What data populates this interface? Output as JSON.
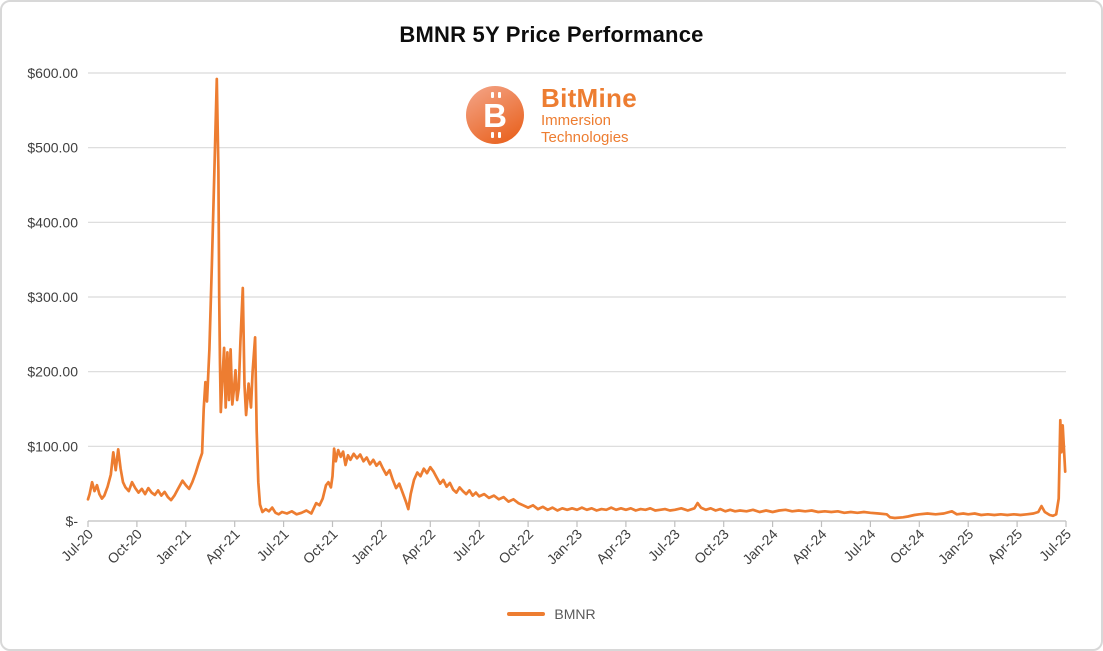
{
  "chart": {
    "title": "BMNR 5Y Price Performance"
  },
  "logo": {
    "brand": "BitMine",
    "sub1": "Immersion",
    "sub2": "Technologies",
    "symbol": "B"
  },
  "colors": {
    "series_orange": "#ED7D31",
    "gridline": "#D9D9D9",
    "axis_line": "#BFBFBF",
    "axis_label": "#404040",
    "legend_label": "#595959",
    "title": "#0d0d0d",
    "logo_text_orange": "#ED7D31",
    "logo_gradient_light": "#F3A284",
    "logo_gradient_dark": "#E96320",
    "frame_border": "#D8D8D8"
  },
  "chart_data": {
    "type": "line",
    "title": "BMNR 5Y Price Performance",
    "xlabel": "",
    "ylabel": "",
    "grid": "horizontal",
    "legend_position": "bottom",
    "legend_entries": [
      "BMNR"
    ],
    "x_axis": {
      "unit": "months-since-Jul-2020",
      "range_months": [
        0,
        60
      ],
      "tick_positions_months": [
        0,
        3,
        6,
        9,
        12,
        15,
        18,
        21,
        24,
        27,
        30,
        33,
        36,
        39,
        42,
        45,
        48,
        51,
        54,
        57,
        60
      ],
      "tick_labels": [
        "Jul-20",
        "Oct-20",
        "Jan-21",
        "Apr-21",
        "Jul-21",
        "Oct-21",
        "Jan-22",
        "Apr-22",
        "Jul-22",
        "Oct-22",
        "Jan-23",
        "Apr-23",
        "Jul-23",
        "Oct-23",
        "Jan-24",
        "Apr-24",
        "Jul-24",
        "Oct-24",
        "Jan-25",
        "Apr-25",
        "Jul-25"
      ],
      "label_rotation_deg": -45
    },
    "y_axis": {
      "range": [
        0,
        600
      ],
      "tick_values": [
        0,
        100,
        200,
        300,
        400,
        500,
        600
      ],
      "tick_labels": [
        "$-",
        "$100.00",
        "$200.00",
        "$300.00",
        "$400.00",
        "$500.00",
        "$600.00"
      ]
    },
    "series": [
      {
        "name": "BMNR",
        "color": "#ED7D31",
        "points_months_price": [
          [
            0,
            29
          ],
          [
            0.1,
            36
          ],
          [
            0.25,
            52
          ],
          [
            0.4,
            40
          ],
          [
            0.55,
            48
          ],
          [
            0.7,
            36
          ],
          [
            0.85,
            30
          ],
          [
            1,
            34
          ],
          [
            1.2,
            46
          ],
          [
            1.4,
            62
          ],
          [
            1.55,
            92
          ],
          [
            1.7,
            68
          ],
          [
            1.85,
            96
          ],
          [
            2,
            70
          ],
          [
            2.15,
            52
          ],
          [
            2.3,
            45
          ],
          [
            2.5,
            40
          ],
          [
            2.7,
            52
          ],
          [
            2.9,
            44
          ],
          [
            3.1,
            38
          ],
          [
            3.3,
            43
          ],
          [
            3.5,
            36
          ],
          [
            3.7,
            44
          ],
          [
            3.9,
            38
          ],
          [
            4.1,
            35
          ],
          [
            4.3,
            41
          ],
          [
            4.5,
            34
          ],
          [
            4.7,
            39
          ],
          [
            4.9,
            32
          ],
          [
            5.1,
            28
          ],
          [
            5.3,
            34
          ],
          [
            5.5,
            42
          ],
          [
            5.8,
            54
          ],
          [
            6,
            48
          ],
          [
            6.2,
            43
          ],
          [
            6.4,
            52
          ],
          [
            6.6,
            64
          ],
          [
            6.8,
            78
          ],
          [
            7,
            91
          ],
          [
            7.1,
            150
          ],
          [
            7.2,
            186
          ],
          [
            7.3,
            160
          ],
          [
            7.45,
            230
          ],
          [
            7.6,
            345
          ],
          [
            7.75,
            465
          ],
          [
            7.9,
            592
          ],
          [
            8,
            470
          ],
          [
            8.05,
            300
          ],
          [
            8.1,
            210
          ],
          [
            8.15,
            146
          ],
          [
            8.25,
            192
          ],
          [
            8.35,
            232
          ],
          [
            8.45,
            152
          ],
          [
            8.55,
            226
          ],
          [
            8.65,
            162
          ],
          [
            8.75,
            230
          ],
          [
            8.85,
            156
          ],
          [
            8.95,
            176
          ],
          [
            9.05,
            202
          ],
          [
            9.15,
            162
          ],
          [
            9.25,
            178
          ],
          [
            9.35,
            240
          ],
          [
            9.5,
            312
          ],
          [
            9.6,
            182
          ],
          [
            9.7,
            142
          ],
          [
            9.85,
            184
          ],
          [
            10,
            152
          ],
          [
            10.1,
            200
          ],
          [
            10.25,
            246
          ],
          [
            10.35,
            120
          ],
          [
            10.45,
            52
          ],
          [
            10.55,
            22
          ],
          [
            10.7,
            12
          ],
          [
            10.9,
            16
          ],
          [
            11.1,
            13
          ],
          [
            11.3,
            18
          ],
          [
            11.5,
            11
          ],
          [
            11.7,
            9
          ],
          [
            11.9,
            12
          ],
          [
            12.2,
            10
          ],
          [
            12.5,
            13
          ],
          [
            12.8,
            9
          ],
          [
            13.1,
            11
          ],
          [
            13.4,
            14
          ],
          [
            13.7,
            10
          ],
          [
            14,
            24
          ],
          [
            14.2,
            21
          ],
          [
            14.4,
            30
          ],
          [
            14.6,
            48
          ],
          [
            14.75,
            52
          ],
          [
            14.9,
            45
          ],
          [
            15,
            60
          ],
          [
            15.1,
            97
          ],
          [
            15.2,
            80
          ],
          [
            15.35,
            95
          ],
          [
            15.5,
            86
          ],
          [
            15.65,
            93
          ],
          [
            15.8,
            75
          ],
          [
            15.95,
            88
          ],
          [
            16.1,
            82
          ],
          [
            16.3,
            90
          ],
          [
            16.5,
            84
          ],
          [
            16.7,
            89
          ],
          [
            16.9,
            80
          ],
          [
            17.1,
            85
          ],
          [
            17.3,
            76
          ],
          [
            17.5,
            82
          ],
          [
            17.7,
            74
          ],
          [
            17.9,
            79
          ],
          [
            18.1,
            70
          ],
          [
            18.3,
            62
          ],
          [
            18.5,
            68
          ],
          [
            18.7,
            55
          ],
          [
            18.9,
            44
          ],
          [
            19.1,
            50
          ],
          [
            19.3,
            38
          ],
          [
            19.5,
            26
          ],
          [
            19.65,
            16
          ],
          [
            19.8,
            36
          ],
          [
            20,
            55
          ],
          [
            20.2,
            65
          ],
          [
            20.4,
            60
          ],
          [
            20.6,
            70
          ],
          [
            20.8,
            64
          ],
          [
            21,
            72
          ],
          [
            21.2,
            66
          ],
          [
            21.4,
            58
          ],
          [
            21.6,
            50
          ],
          [
            21.8,
            55
          ],
          [
            22,
            46
          ],
          [
            22.2,
            51
          ],
          [
            22.4,
            42
          ],
          [
            22.6,
            38
          ],
          [
            22.8,
            45
          ],
          [
            23,
            40
          ],
          [
            23.2,
            36
          ],
          [
            23.4,
            41
          ],
          [
            23.6,
            34
          ],
          [
            23.8,
            38
          ],
          [
            24,
            33
          ],
          [
            24.3,
            36
          ],
          [
            24.6,
            31
          ],
          [
            24.9,
            34
          ],
          [
            25.2,
            29
          ],
          [
            25.5,
            32
          ],
          [
            25.8,
            26
          ],
          [
            26.1,
            29
          ],
          [
            26.4,
            24
          ],
          [
            26.7,
            21
          ],
          [
            27,
            18
          ],
          [
            27.3,
            21
          ],
          [
            27.6,
            16
          ],
          [
            27.9,
            19
          ],
          [
            28.2,
            15
          ],
          [
            28.5,
            18
          ],
          [
            28.8,
            14
          ],
          [
            29.1,
            17
          ],
          [
            29.4,
            15
          ],
          [
            29.7,
            17
          ],
          [
            30,
            15
          ],
          [
            30.3,
            18
          ],
          [
            30.6,
            15
          ],
          [
            30.9,
            17
          ],
          [
            31.2,
            14
          ],
          [
            31.5,
            16
          ],
          [
            31.8,
            15
          ],
          [
            32.1,
            18
          ],
          [
            32.4,
            15
          ],
          [
            32.7,
            17
          ],
          [
            33,
            15
          ],
          [
            33.3,
            17
          ],
          [
            33.6,
            14
          ],
          [
            33.9,
            16
          ],
          [
            34.2,
            15
          ],
          [
            34.5,
            17
          ],
          [
            34.8,
            14
          ],
          [
            35.1,
            15
          ],
          [
            35.4,
            16
          ],
          [
            35.7,
            14
          ],
          [
            36,
            15
          ],
          [
            36.4,
            17
          ],
          [
            36.8,
            14
          ],
          [
            37.2,
            17
          ],
          [
            37.4,
            24
          ],
          [
            37.6,
            18
          ],
          [
            37.9,
            15
          ],
          [
            38.2,
            17
          ],
          [
            38.5,
            14
          ],
          [
            38.8,
            16
          ],
          [
            39.1,
            13
          ],
          [
            39.4,
            15
          ],
          [
            39.7,
            13
          ],
          [
            40,
            14
          ],
          [
            40.4,
            13
          ],
          [
            40.8,
            15
          ],
          [
            41.2,
            12
          ],
          [
            41.6,
            14
          ],
          [
            42,
            12
          ],
          [
            42.4,
            14
          ],
          [
            42.8,
            15
          ],
          [
            43.2,
            13
          ],
          [
            43.6,
            14
          ],
          [
            44,
            13
          ],
          [
            44.4,
            14
          ],
          [
            44.8,
            12
          ],
          [
            45.2,
            13
          ],
          [
            45.6,
            12
          ],
          [
            46,
            13
          ],
          [
            46.4,
            11
          ],
          [
            46.8,
            12
          ],
          [
            47.2,
            11
          ],
          [
            47.6,
            12
          ],
          [
            48,
            11
          ],
          [
            48.5,
            10
          ],
          [
            49,
            9
          ],
          [
            49.2,
            5
          ],
          [
            49.5,
            4
          ],
          [
            50,
            5
          ],
          [
            50.3,
            6
          ],
          [
            50.7,
            8
          ],
          [
            51,
            9
          ],
          [
            51.5,
            10
          ],
          [
            52,
            9
          ],
          [
            52.5,
            10
          ],
          [
            53,
            13
          ],
          [
            53.3,
            9
          ],
          [
            53.7,
            10
          ],
          [
            54,
            9
          ],
          [
            54.4,
            10
          ],
          [
            54.8,
            8
          ],
          [
            55.2,
            9
          ],
          [
            55.6,
            8
          ],
          [
            56,
            9
          ],
          [
            56.4,
            8
          ],
          [
            56.8,
            9
          ],
          [
            57.2,
            8
          ],
          [
            57.6,
            9
          ],
          [
            58,
            10
          ],
          [
            58.3,
            12
          ],
          [
            58.5,
            20
          ],
          [
            58.7,
            12
          ],
          [
            59,
            8
          ],
          [
            59.2,
            7
          ],
          [
            59.4,
            9
          ],
          [
            59.55,
            30
          ],
          [
            59.65,
            135
          ],
          [
            59.72,
            92
          ],
          [
            59.8,
            128
          ],
          [
            59.95,
            66
          ]
        ]
      }
    ]
  },
  "legend": {
    "label": "BMNR"
  }
}
